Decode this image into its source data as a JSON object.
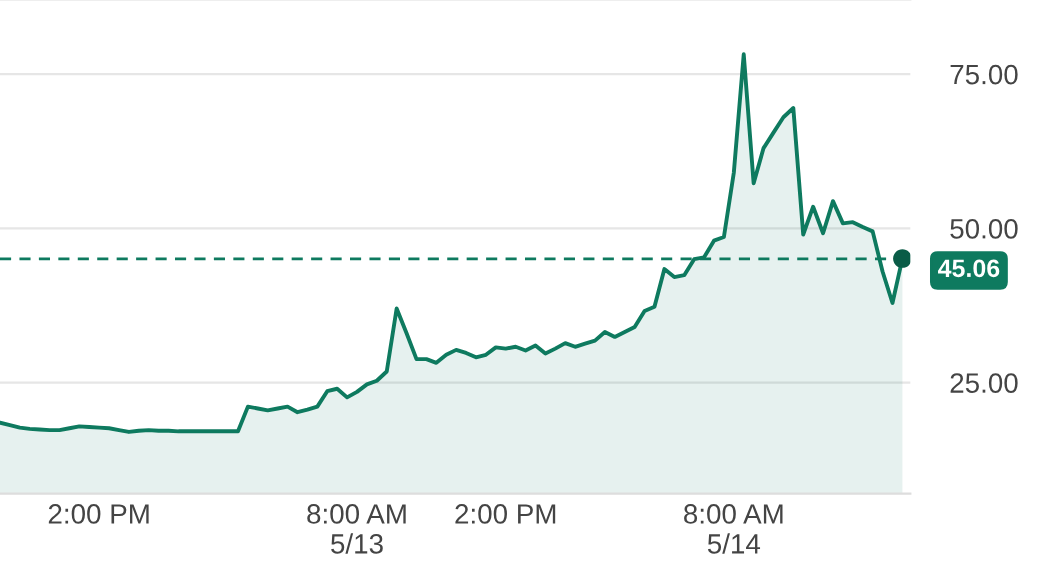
{
  "chart_data": {
    "type": "area",
    "categories": [
      null,
      null,
      null,
      null,
      null,
      null,
      null,
      null,
      null,
      null,
      "2:00 PM",
      null,
      null,
      null,
      null,
      null,
      null,
      null,
      null,
      null,
      null,
      null,
      null,
      null,
      null,
      null,
      null,
      null,
      null,
      null,
      null,
      null,
      null,
      null,
      null,
      null,
      "8:00 AM\n5/13",
      null,
      null,
      null,
      null,
      null,
      null,
      null,
      null,
      null,
      null,
      null,
      null,
      null,
      null,
      "2:00 PM",
      null,
      null,
      null,
      null,
      null,
      null,
      null,
      null,
      null,
      null,
      null,
      null,
      null,
      null,
      null,
      null,
      null,
      null,
      null,
      null,
      null,
      null,
      "8:00 AM\n5/14",
      null,
      null,
      null,
      null,
      null,
      null,
      null,
      null,
      null,
      null,
      null,
      null,
      null,
      null,
      null,
      null,
      null
    ],
    "series": [
      {
        "color": "#0e7a5f",
        "values": [
          18.5,
          18.1,
          17.7,
          17.5,
          17.4,
          17.3,
          17.3,
          17.6,
          17.9,
          17.8,
          17.7,
          17.6,
          17.3,
          17,
          17.2,
          17.3,
          17.2,
          17.2,
          17.1,
          17.1,
          17.1,
          17.1,
          17.1,
          17.1,
          17.1,
          21.1,
          20.8,
          20.5,
          20.8,
          21.1,
          20.2,
          20.6,
          21.1,
          23.6,
          24,
          22.6,
          23.5,
          24.7,
          25.3,
          26.8,
          37,
          33,
          28.8,
          28.8,
          28.2,
          29.5,
          30.3,
          29.8,
          29.1,
          29.5,
          30.7,
          30.5,
          30.8,
          30.2,
          31,
          29.7,
          30.5,
          31.4,
          30.8,
          31.3,
          31.8,
          33.2,
          32.4,
          33.2,
          34,
          36.6,
          37.3,
          43.4,
          42.1,
          42.4,
          45,
          45.3,
          48,
          48.6,
          59,
          78.2,
          57.3,
          63,
          65.5,
          68,
          69.5,
          49,
          53.5,
          49.2,
          54.4,
          50.8,
          51,
          50.2,
          49.5,
          43,
          37.9,
          45.1
        ]
      },
      {
        "type": "scatter",
        "color": "#0a5c47",
        "values": [
          null,
          null,
          null,
          null,
          null,
          null,
          null,
          null,
          null,
          null,
          null,
          null,
          null,
          null,
          null,
          null,
          null,
          null,
          null,
          null,
          null,
          null,
          null,
          null,
          null,
          null,
          null,
          null,
          null,
          null,
          null,
          null,
          null,
          null,
          null,
          null,
          null,
          null,
          null,
          null,
          null,
          null,
          null,
          null,
          null,
          null,
          null,
          null,
          null,
          null,
          null,
          null,
          null,
          null,
          null,
          null,
          null,
          null,
          null,
          null,
          null,
          null,
          null,
          null,
          null,
          null,
          null,
          null,
          null,
          null,
          null,
          null,
          null,
          null,
          null,
          null,
          null,
          null,
          null,
          null,
          null,
          null,
          null,
          null,
          null,
          null,
          null,
          null,
          null,
          null,
          null,
          45.1
        ]
      }
    ],
    "ylim": [
      7,
      87
    ],
    "yticks": [
      {
        "value": 25,
        "label": "25.00"
      },
      {
        "value": 50,
        "label": "50.00"
      },
      {
        "value": 75,
        "label": "75.00"
      }
    ],
    "grid": "y",
    "ref_lines": [
      {
        "axis": "y",
        "value": 45.06,
        "label": "45.06",
        "color": "#0e7a5f",
        "line_style": "dashed"
      }
    ],
    "legend": false
  }
}
